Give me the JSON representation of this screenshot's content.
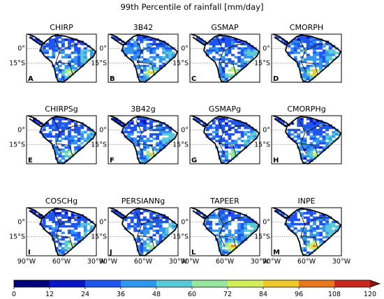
{
  "figure": {
    "title": "99th Percentile of rainfall [mm/day]"
  },
  "chart_data": {
    "type": "heatmap",
    "title": "99th Percentile of rainfall [mm/day]",
    "panels": [
      {
        "name": "CHIRP",
        "letter": "A",
        "max_intensity": 0.8,
        "south_max": 70,
        "extent": 1.0
      },
      {
        "name": "3B42",
        "letter": "B",
        "max_intensity": 0.85,
        "south_max": 80,
        "extent": 1.0
      },
      {
        "name": "GSMAP",
        "letter": "C",
        "max_intensity": 0.8,
        "south_max": 78,
        "extent": 1.0
      },
      {
        "name": "CMORPH",
        "letter": "D",
        "max_intensity": 0.9,
        "south_max": 88,
        "extent": 1.0
      },
      {
        "name": "CHIRPSg",
        "letter": "E",
        "max_intensity": 0.75,
        "south_max": 68,
        "extent": 1.0
      },
      {
        "name": "3B42g",
        "letter": "F",
        "max_intensity": 0.75,
        "south_max": 72,
        "extent": 1.0
      },
      {
        "name": "GSMAPg",
        "letter": "G",
        "max_intensity": 0.7,
        "south_max": 64,
        "extent": 1.0
      },
      {
        "name": "CMORPHg",
        "letter": "H",
        "max_intensity": 0.7,
        "south_max": 64,
        "extent": 1.0
      },
      {
        "name": "COSCHg",
        "letter": "I",
        "max_intensity": 0.7,
        "south_max": 66,
        "extent": 1.0
      },
      {
        "name": "PERSIANNg",
        "letter": "J",
        "max_intensity": 0.7,
        "south_max": 64,
        "extent": 1.0
      },
      {
        "name": "TAPEER",
        "letter": "L",
        "max_intensity": 0.9,
        "south_max": 92,
        "extent": 1.0
      },
      {
        "name": "INPE",
        "letter": "M",
        "max_intensity": 0.85,
        "south_max": 86,
        "extent": 1.0
      }
    ],
    "x_ticks": [
      "90°W",
      "60°W",
      "30°W"
    ],
    "y_ticks": [
      "0°",
      "15°S"
    ],
    "colorbar": {
      "ticks": [
        "0",
        "12",
        "24",
        "36",
        "48",
        "60",
        "72",
        "84",
        "96",
        "108",
        "120"
      ],
      "min": 0,
      "max": 120,
      "step": 12,
      "extend": "max",
      "colors": [
        "#00007a",
        "#0a14c8",
        "#1e55f0",
        "#3296ee",
        "#5ac8d8",
        "#96e6a0",
        "#d2ee5a",
        "#f0c828",
        "#e6781e",
        "#c8281e",
        "#8c1410"
      ]
    }
  }
}
